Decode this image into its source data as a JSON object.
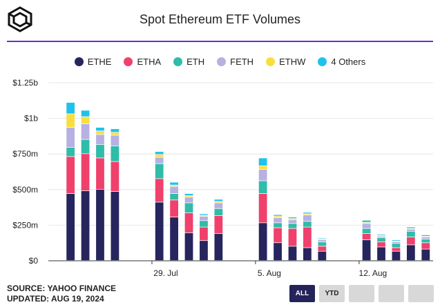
{
  "header": {
    "title": "Spot Ethereum ETF Volumes",
    "logo_icon": "cube-logo-icon"
  },
  "legend": [
    {
      "label": "ETHE",
      "color": "#26255e"
    },
    {
      "label": "ETHA",
      "color": "#ef416c"
    },
    {
      "label": "ETH",
      "color": "#2fbca9"
    },
    {
      "label": "FETH",
      "color": "#b7b0e2"
    },
    {
      "label": "ETHW",
      "color": "#f9df3e"
    },
    {
      "label": "4 Others",
      "color": "#1ec2ec"
    }
  ],
  "footer": {
    "source": "SOURCE: YAHOO FINANCE",
    "updated": "UPDATED: AUG 19, 2024"
  },
  "buttons": [
    {
      "label": "ALL",
      "active": true
    },
    {
      "label": "YTD",
      "active": false
    },
    {
      "label": "",
      "active": false
    },
    {
      "label": "",
      "active": false
    },
    {
      "label": "",
      "active": false
    }
  ],
  "chart_data": {
    "type": "bar",
    "stacked": true,
    "title": "Spot Ethereum ETF Volumes",
    "ylim": [
      0,
      1250000000
    ],
    "y_ticks": [
      {
        "value": 0,
        "label": "$0"
      },
      {
        "value": 250000000,
        "label": "$250m"
      },
      {
        "value": 500000000,
        "label": "$500m"
      },
      {
        "value": 750000000,
        "label": "$750m"
      },
      {
        "value": 1000000000,
        "label": "$1b"
      },
      {
        "value": 1250000000,
        "label": "$1.25b"
      }
    ],
    "x_ticks": [
      {
        "date": "2024-07-29",
        "label": "29. Jul"
      },
      {
        "date": "2024-08-05",
        "label": "5. Aug"
      },
      {
        "date": "2024-08-12",
        "label": "12. Aug"
      }
    ],
    "x_range": [
      "2024-07-22",
      "2024-08-17"
    ],
    "dates": [
      "2024-07-23",
      "2024-07-24",
      "2024-07-25",
      "2024-07-26",
      "2024-07-29",
      "2024-07-30",
      "2024-07-31",
      "2024-08-01",
      "2024-08-02",
      "2024-08-05",
      "2024-08-06",
      "2024-08-07",
      "2024-08-08",
      "2024-08-09",
      "2024-08-12",
      "2024-08-13",
      "2024-08-14",
      "2024-08-15",
      "2024-08-16"
    ],
    "series": [
      {
        "name": "ETHE",
        "values": [
          470,
          490,
          500,
          485,
          410,
          305,
          195,
          140,
          190,
          265,
          125,
          100,
          90,
          65,
          145,
          95,
          65,
          110,
          80
        ]
      },
      {
        "name": "ETHA",
        "values": [
          260,
          260,
          220,
          210,
          165,
          120,
          140,
          95,
          125,
          205,
          105,
          125,
          145,
          35,
          45,
          35,
          25,
          55,
          45
        ]
      },
      {
        "name": "ETH",
        "values": [
          65,
          100,
          95,
          110,
          105,
          45,
          70,
          45,
          50,
          90,
          35,
          35,
          40,
          30,
          35,
          30,
          30,
          40,
          25
        ]
      },
      {
        "name": "FETH",
        "values": [
          140,
          110,
          70,
          75,
          45,
          50,
          40,
          30,
          40,
          80,
          35,
          25,
          45,
          15,
          35,
          10,
          12,
          15,
          15
        ]
      },
      {
        "name": "ETHW",
        "values": [
          95,
          50,
          25,
          20,
          20,
          10,
          10,
          8,
          10,
          25,
          12,
          10,
          8,
          5,
          8,
          5,
          5,
          5,
          5
        ]
      },
      {
        "name": "4 Others",
        "values": [
          80,
          45,
          25,
          25,
          20,
          20,
          15,
          10,
          15,
          55,
          10,
          10,
          10,
          7,
          15,
          8,
          8,
          10,
          10
        ]
      }
    ],
    "units": "$ millions"
  }
}
